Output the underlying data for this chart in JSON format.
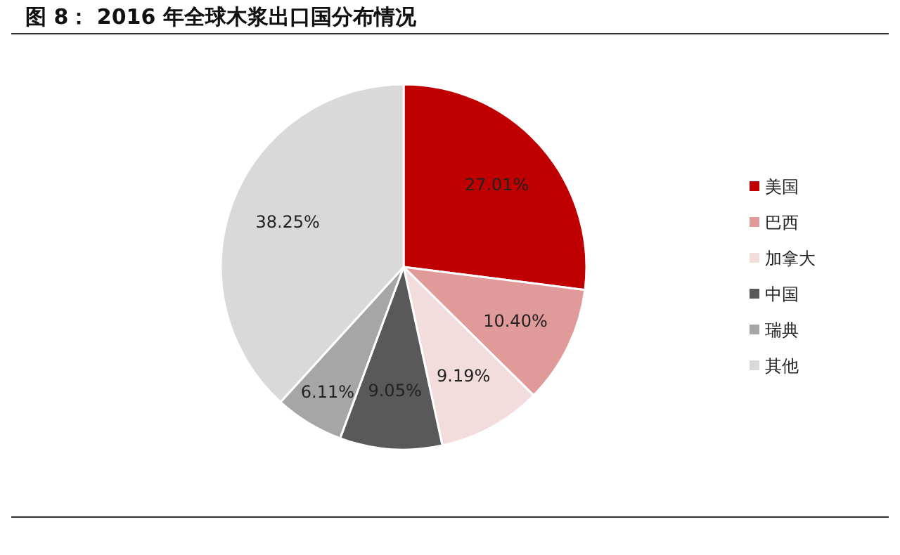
{
  "chart_data": {
    "type": "pie",
    "title": "图 8： 2016 年全球木浆出口国分布情况",
    "categories": [
      "美国",
      "巴西",
      "加拿大",
      "中国",
      "瑞典",
      "其他"
    ],
    "values": [
      27.01,
      10.4,
      9.19,
      9.05,
      6.11,
      38.25
    ],
    "colors": [
      "#c00000",
      "#e09a9a",
      "#f2dcdc",
      "#595959",
      "#a6a6a6",
      "#d9d9d9"
    ],
    "value_labels": [
      "27.01%",
      "10.40%",
      "9.19%",
      "9.05%",
      "6.11%",
      "38.25%"
    ],
    "legend": "right"
  }
}
